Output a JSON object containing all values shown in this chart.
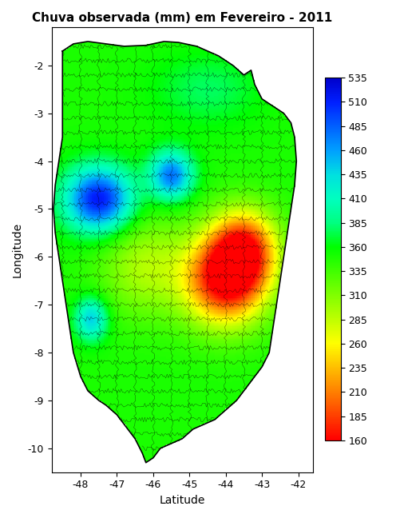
{
  "title": "Chuva observada (mm) em Fevereiro - 2011",
  "xlabel": "Latitude",
  "ylabel": "Longitude",
  "xlim": [
    -48.8,
    -41.6
  ],
  "ylim": [
    -10.5,
    -1.2
  ],
  "colorbar_ticks": [
    160,
    185,
    210,
    235,
    260,
    285,
    310,
    335,
    360,
    385,
    410,
    435,
    460,
    485,
    510,
    535
  ],
  "vmin": 160,
  "vmax": 535,
  "background_color": "#ffffff",
  "title_fontsize": 11,
  "label_fontsize": 10,
  "tick_fontsize": 9,
  "colorbar_fontsize": 9,
  "figsize": [
    4.96,
    6.48
  ],
  "dpi": 100,
  "xticks": [
    -48,
    -47,
    -46,
    -45,
    -44,
    -43,
    -42
  ],
  "yticks": [
    -10,
    -9,
    -8,
    -7,
    -6,
    -5,
    -4,
    -3,
    -2
  ],
  "colormap_colors": [
    [
      0.0,
      "#ff0000"
    ],
    [
      0.067,
      "#ff4000"
    ],
    [
      0.133,
      "#ff8000"
    ],
    [
      0.2,
      "#ffbf00"
    ],
    [
      0.267,
      "#ffff00"
    ],
    [
      0.333,
      "#bfff00"
    ],
    [
      0.4,
      "#80ff00"
    ],
    [
      0.467,
      "#40ff00"
    ],
    [
      0.533,
      "#00ff00"
    ],
    [
      0.6,
      "#00ff80"
    ],
    [
      0.667,
      "#00ffbf"
    ],
    [
      0.733,
      "#00e0e0"
    ],
    [
      0.8,
      "#00a0ff"
    ],
    [
      0.867,
      "#0060ff"
    ],
    [
      0.933,
      "#0020ff"
    ],
    [
      1.0,
      "#0000cc"
    ]
  ],
  "seed": 42,
  "maranhao_shape_lon_min": -48.8,
  "maranhao_shape_lon_max": -41.6,
  "maranhao_shape_lat_min": -10.5,
  "maranhao_shape_lat_max": -1.2
}
